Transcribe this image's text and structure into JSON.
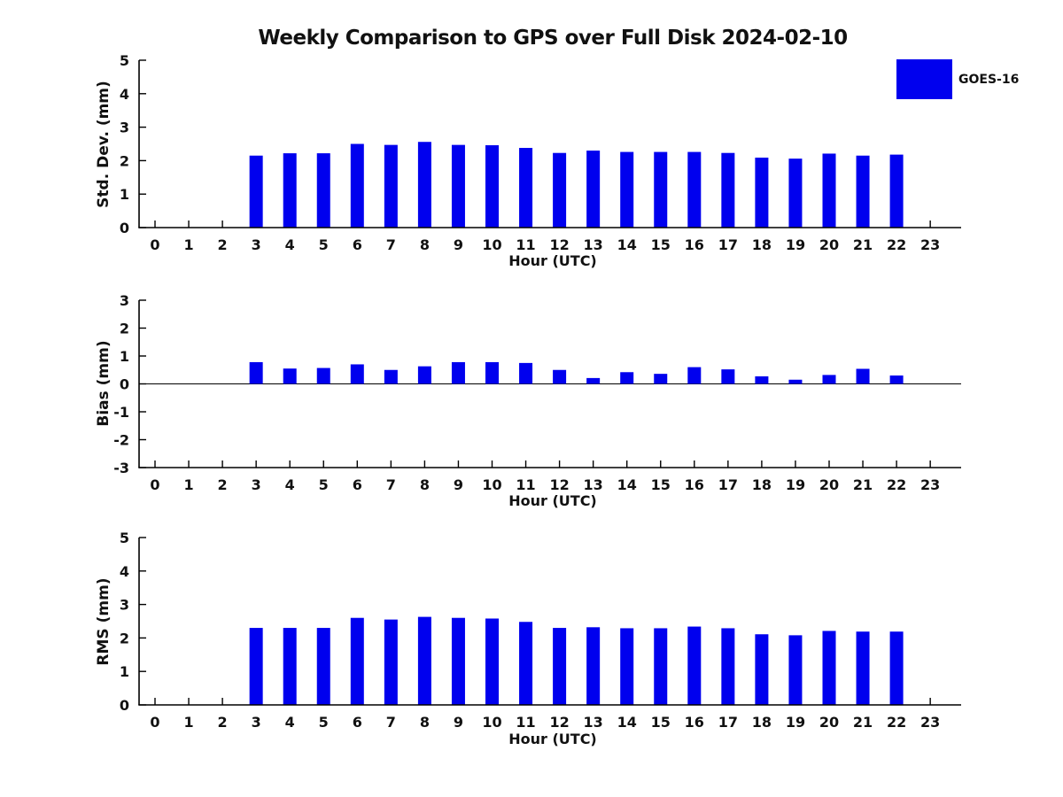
{
  "figure": {
    "legend": {
      "label": "GOES-16",
      "color": "#0000ee",
      "position": "top-right"
    }
  },
  "chart_data": {
    "type": "bar",
    "title": "Weekly Comparison to GPS over Full Disk 2024-02-10",
    "xlabel": "Hour (UTC)",
    "bar_color": "#0000ee",
    "grid": false,
    "categories": [
      "0",
      "1",
      "2",
      "3",
      "4",
      "5",
      "6",
      "7",
      "8",
      "9",
      "10",
      "11",
      "12",
      "13",
      "14",
      "15",
      "16",
      "17",
      "18",
      "19",
      "20",
      "21",
      "22",
      "23"
    ],
    "legend": {
      "label": "GOES-16",
      "position": "top-right"
    },
    "subplots": [
      {
        "name": "std-dev",
        "ylabel": "Std. Dev. (mm)",
        "ylim": [
          0,
          5
        ],
        "yticks": [
          0,
          1,
          2,
          3,
          4,
          5
        ],
        "zero_line": false,
        "values": [
          null,
          null,
          null,
          2.15,
          2.22,
          2.22,
          2.5,
          2.47,
          2.56,
          2.47,
          2.46,
          2.38,
          2.23,
          2.3,
          2.26,
          2.26,
          2.26,
          2.23,
          2.09,
          2.06,
          2.21,
          2.15,
          2.18,
          null
        ]
      },
      {
        "name": "bias",
        "ylabel": "Bias (mm)",
        "ylim": [
          -3,
          3
        ],
        "yticks": [
          -3,
          -2,
          -1,
          0,
          1,
          2,
          3
        ],
        "zero_line": true,
        "values": [
          null,
          null,
          null,
          0.78,
          0.55,
          0.57,
          0.7,
          0.5,
          0.63,
          0.78,
          0.78,
          0.75,
          0.5,
          0.21,
          0.42,
          0.36,
          0.6,
          0.52,
          0.27,
          0.15,
          0.32,
          0.54,
          0.3,
          null
        ]
      },
      {
        "name": "rms",
        "ylabel": "RMS (mm)",
        "ylim": [
          0,
          5
        ],
        "yticks": [
          0,
          1,
          2,
          3,
          4,
          5
        ],
        "zero_line": false,
        "values": [
          null,
          null,
          null,
          2.3,
          2.3,
          2.3,
          2.6,
          2.55,
          2.63,
          2.6,
          2.58,
          2.48,
          2.3,
          2.32,
          2.29,
          2.29,
          2.34,
          2.29,
          2.11,
          2.08,
          2.21,
          2.19,
          2.19,
          null
        ]
      }
    ]
  }
}
